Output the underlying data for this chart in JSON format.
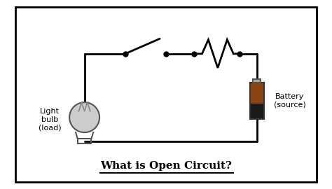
{
  "title": "What is Open Circuit?",
  "title_fontsize": 11,
  "label_bulb": "Light\nbulb\n(load)",
  "label_battery": "Battery\n(source)",
  "bg_color": "#ffffff",
  "border_color": "#000000",
  "line_color": "#000000",
  "line_width": 2.0
}
